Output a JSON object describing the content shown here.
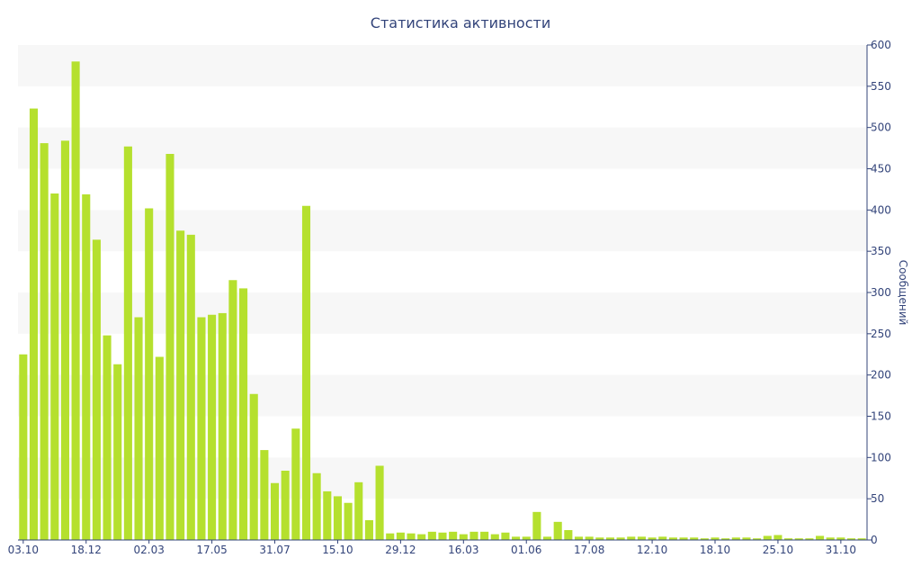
{
  "chart_data": {
    "type": "bar",
    "title": "Статистика активности",
    "ylabel": "Сообщений",
    "xlabel": "",
    "ylim": [
      0,
      600
    ],
    "yticks": [
      0,
      50,
      100,
      150,
      200,
      250,
      300,
      350,
      400,
      450,
      500,
      550,
      600
    ],
    "y_axis_position": "right",
    "grid": "alternating horizontal bands",
    "bar_color": "#b5e02e",
    "band_color": "#f7f7f7",
    "axis_color": "#33447a",
    "x_tick_labels": [
      {
        "index": 0,
        "label": "03.10"
      },
      {
        "index": 6,
        "label": "18.12"
      },
      {
        "index": 12,
        "label": "02.03"
      },
      {
        "index": 18,
        "label": "17.05"
      },
      {
        "index": 24,
        "label": "31.07"
      },
      {
        "index": 30,
        "label": "15.10"
      },
      {
        "index": 36,
        "label": "29.12"
      },
      {
        "index": 42,
        "label": "16.03"
      },
      {
        "index": 48,
        "label": "01.06"
      },
      {
        "index": 54,
        "label": "17.08"
      },
      {
        "index": 60,
        "label": "12.10"
      },
      {
        "index": 66,
        "label": "18.10"
      },
      {
        "index": 72,
        "label": "25.10"
      },
      {
        "index": 78,
        "label": "31.10"
      }
    ],
    "values": [
      225,
      523,
      481,
      420,
      484,
      580,
      419,
      364,
      248,
      213,
      477,
      270,
      402,
      222,
      468,
      375,
      370,
      270,
      273,
      275,
      315,
      305,
      177,
      109,
      69,
      84,
      135,
      405,
      81,
      59,
      53,
      45,
      70,
      24,
      90,
      8,
      9,
      8,
      7,
      10,
      9,
      10,
      7,
      10,
      10,
      7,
      9,
      4,
      4,
      34,
      4,
      22,
      12,
      4,
      4,
      3,
      3,
      3,
      4,
      4,
      3,
      4,
      3,
      3,
      3,
      2,
      3,
      2,
      3,
      3,
      2,
      5,
      6,
      2,
      2,
      2,
      5,
      3,
      3,
      2,
      2
    ]
  }
}
